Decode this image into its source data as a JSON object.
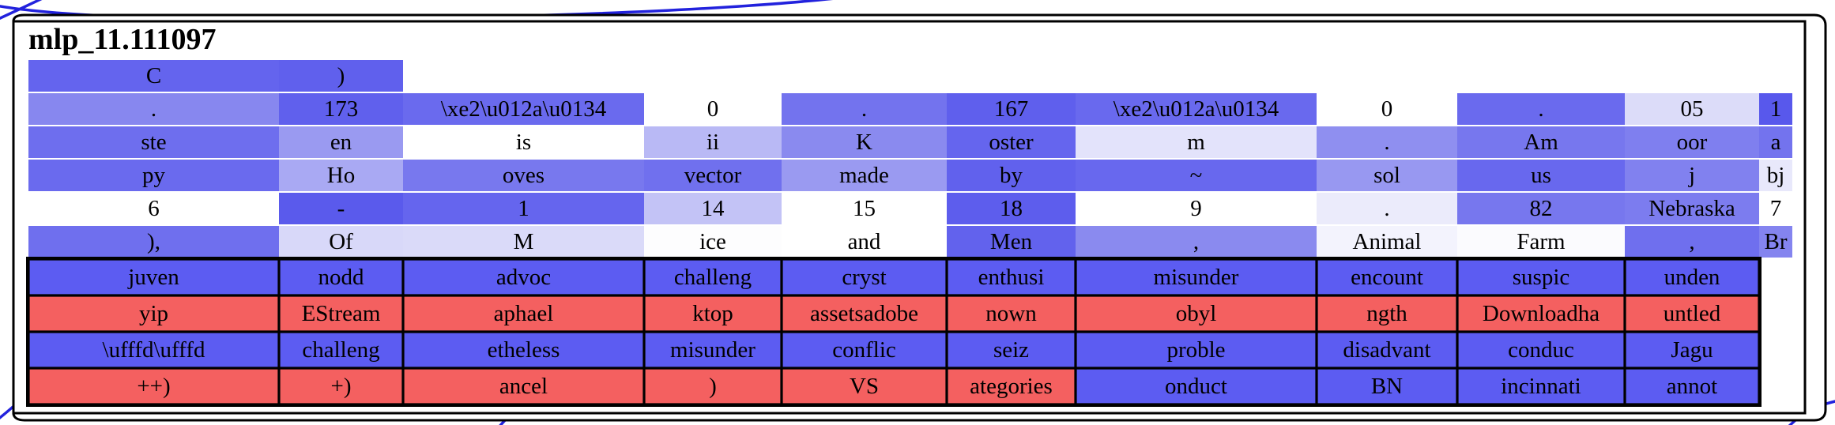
{
  "title": "mlp_11.111097",
  "colors": {
    "edge_blue": "#2222dd",
    "border_black": "#000000",
    "bordered_blue": "#5c5cf2",
    "bordered_red": "#f46060"
  },
  "chart_data": {
    "type": "heatmap",
    "title": "mlp_11.111097",
    "legend_position": "none",
    "grid": "off",
    "top_rows": [
      [
        {
          "t": "C",
          "c": "#6464ee"
        },
        {
          "t": ")",
          "c": "#6060ed"
        },
        {
          "t": "",
          "c": null
        },
        {
          "t": "",
          "c": null
        },
        {
          "t": "",
          "c": null
        },
        {
          "t": "",
          "c": null
        },
        {
          "t": "",
          "c": null
        },
        {
          "t": "",
          "c": null
        },
        {
          "t": "",
          "c": null
        },
        {
          "t": "",
          "c": null
        },
        {
          "t": "",
          "c": null
        }
      ],
      [
        {
          "t": ".",
          "c": "#8787ef"
        },
        {
          "t": "173",
          "c": "#6060ed"
        },
        {
          "t": "\\xe2\\u012a\\u0134",
          "c": "#6a6aee"
        },
        {
          "t": "0",
          "c": "#ffffff"
        },
        {
          "t": ".",
          "c": "#7373ee"
        },
        {
          "t": "167",
          "c": "#5f5fed"
        },
        {
          "t": "\\xe2\\u012a\\u0134",
          "c": "#6969ee"
        },
        {
          "t": "0",
          "c": "#ffffff"
        },
        {
          "t": ".",
          "c": "#6a6aee"
        },
        {
          "t": "05",
          "c": "#dcdcf9"
        },
        {
          "t": "1",
          "c": "#5858ec"
        }
      ],
      [
        {
          "t": "ste",
          "c": "#6e6eee"
        },
        {
          "t": "en",
          "c": "#9a9af1"
        },
        {
          "t": "is",
          "c": "#ffffff"
        },
        {
          "t": "ii",
          "c": "#b9b9f5"
        },
        {
          "t": "K",
          "c": "#8a8aef"
        },
        {
          "t": "oster",
          "c": "#6565ee"
        },
        {
          "t": "m",
          "c": "#e3e3fb"
        },
        {
          "t": ".",
          "c": "#8f8ff0"
        },
        {
          "t": "Am",
          "c": "#7777ee"
        },
        {
          "t": "oor",
          "c": "#7f7fef"
        },
        {
          "t": "a",
          "c": "#7373ee"
        }
      ],
      [
        {
          "t": "py",
          "c": "#6a6aee"
        },
        {
          "t": "Ho",
          "c": "#a9a9f3"
        },
        {
          "t": "oves",
          "c": "#7878ee"
        },
        {
          "t": "vector",
          "c": "#7070ee"
        },
        {
          "t": "made",
          "c": "#9a9af1"
        },
        {
          "t": "by",
          "c": "#6161ed"
        },
        {
          "t": "~",
          "c": "#6868ee"
        },
        {
          "t": "sol",
          "c": "#9898f1"
        },
        {
          "t": "us",
          "c": "#6868ee"
        },
        {
          "t": "j",
          "c": "#8181ef"
        },
        {
          "t": "bj",
          "c": "#e8e8fb"
        }
      ],
      [
        {
          "t": "6",
          "c": "#ffffff"
        },
        {
          "t": "-",
          "c": "#5a5aec"
        },
        {
          "t": "1",
          "c": "#6565ee"
        },
        {
          "t": "14",
          "c": "#c3c3f6"
        },
        {
          "t": "15",
          "c": "#ffffff"
        },
        {
          "t": "18",
          "c": "#5d5ded"
        },
        {
          "t": "9",
          "c": "#ffffff"
        },
        {
          "t": ".",
          "c": "#ebebfb"
        },
        {
          "t": "82",
          "c": "#7777ee"
        },
        {
          "t": "Nebraska",
          "c": "#7c7cef"
        },
        {
          "t": "7",
          "c": "#ffffff"
        }
      ],
      [
        {
          "t": "),",
          "c": "#6f6fee"
        },
        {
          "t": "Of",
          "c": "#d8d8f9"
        },
        {
          "t": "M",
          "c": "#dadaf9"
        },
        {
          "t": "ice",
          "c": "#fdfdfe"
        },
        {
          "t": "and",
          "c": "#ffffff"
        },
        {
          "t": "Men",
          "c": "#6262ed"
        },
        {
          "t": ",",
          "c": "#8a8aef"
        },
        {
          "t": "Animal",
          "c": "#f3f3fd"
        },
        {
          "t": "Farm",
          "c": "#fbfbfe"
        },
        {
          "t": ",",
          "c": "#6f6fee"
        },
        {
          "t": "Br",
          "c": "#8484ef"
        }
      ]
    ],
    "bordered_rows": [
      [
        {
          "t": "juven",
          "c": "#5c5cf2"
        },
        {
          "t": "nodd",
          "c": "#5c5cf2"
        },
        {
          "t": "advoc",
          "c": "#5c5cf2"
        },
        {
          "t": "challeng",
          "c": "#5c5cf2"
        },
        {
          "t": "cryst",
          "c": "#5c5cf2"
        },
        {
          "t": "enthusi",
          "c": "#5c5cf2"
        },
        {
          "t": "misunder",
          "c": "#5c5cf2"
        },
        {
          "t": "encount",
          "c": "#5c5cf2"
        },
        {
          "t": "suspic",
          "c": "#5c5cf2"
        },
        {
          "t": "unden",
          "c": "#5c5cf2"
        }
      ],
      [
        {
          "t": "yip",
          "c": "#f46060"
        },
        {
          "t": "EStream",
          "c": "#f46060"
        },
        {
          "t": "aphael",
          "c": "#f46060"
        },
        {
          "t": "ktop",
          "c": "#f46060"
        },
        {
          "t": "assetsadobe",
          "c": "#f46060"
        },
        {
          "t": "nown",
          "c": "#f46060"
        },
        {
          "t": "obyl",
          "c": "#f46060"
        },
        {
          "t": "ngth",
          "c": "#f46060"
        },
        {
          "t": "Downloadha",
          "c": "#f46060"
        },
        {
          "t": "untled",
          "c": "#f46060"
        }
      ],
      [
        {
          "t": "\\ufffd\\ufffd",
          "c": "#5c5cf2"
        },
        {
          "t": "challeng",
          "c": "#5c5cf2"
        },
        {
          "t": "etheless",
          "c": "#5c5cf2"
        },
        {
          "t": "misunder",
          "c": "#5c5cf2"
        },
        {
          "t": "conflic",
          "c": "#5c5cf2"
        },
        {
          "t": "seiz",
          "c": "#5c5cf2"
        },
        {
          "t": "proble",
          "c": "#5c5cf2"
        },
        {
          "t": "disadvant",
          "c": "#5c5cf2"
        },
        {
          "t": "conduc",
          "c": "#5c5cf2"
        },
        {
          "t": "Jagu",
          "c": "#5c5cf2"
        }
      ],
      [
        {
          "t": "++)",
          "c": "#f46060"
        },
        {
          "t": "+)",
          "c": "#f46060"
        },
        {
          "t": "ancel",
          "c": "#f46060"
        },
        {
          "t": ")",
          "c": "#f46060"
        },
        {
          "t": "VS",
          "c": "#f46060"
        },
        {
          "t": "ategories",
          "c": "#f46060"
        },
        {
          "t": "onduct",
          "c": "#5c5cf2"
        },
        {
          "t": "BN",
          "c": "#5c5cf2"
        },
        {
          "t": "incinnati",
          "c": "#5c5cf2"
        },
        {
          "t": "annot",
          "c": "#5c5cf2"
        }
      ]
    ]
  }
}
